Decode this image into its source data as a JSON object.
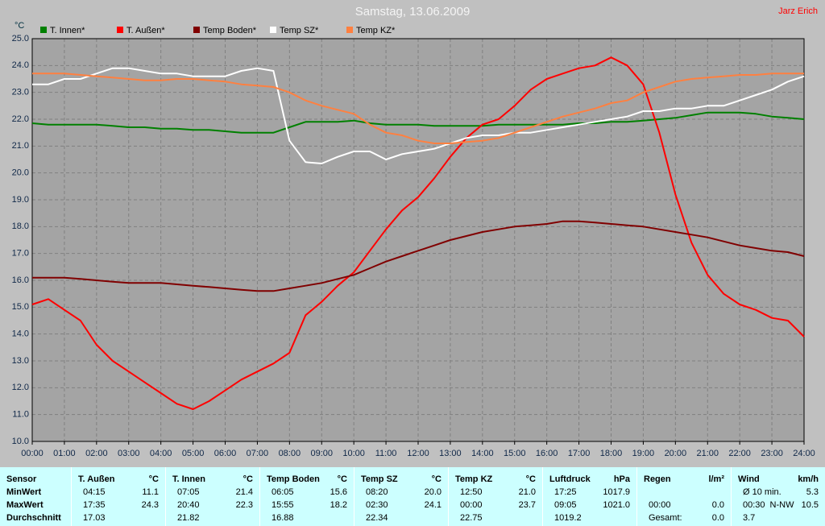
{
  "chart_data": {
    "type": "line",
    "title": "Samstag, 13.06.2009",
    "y_label": "°C",
    "xlim": [
      0,
      24
    ],
    "ylim": [
      10,
      25
    ],
    "xticks": [
      {
        "value": 0,
        "label": "00:00"
      },
      {
        "value": 1,
        "label": "01:00"
      },
      {
        "value": 2,
        "label": "02:00"
      },
      {
        "value": 3,
        "label": "03:00"
      },
      {
        "value": 4,
        "label": "04:00"
      },
      {
        "value": 5,
        "label": "05:00"
      },
      {
        "value": 6,
        "label": "06:00"
      },
      {
        "value": 7,
        "label": "07:00"
      },
      {
        "value": 8,
        "label": "08:00"
      },
      {
        "value": 9,
        "label": "09:00"
      },
      {
        "value": 10,
        "label": "10:00"
      },
      {
        "value": 11,
        "label": "11:00"
      },
      {
        "value": 12,
        "label": "12:00"
      },
      {
        "value": 13,
        "label": "13:00"
      },
      {
        "value": 14,
        "label": "14:00"
      },
      {
        "value": 15,
        "label": "15:00"
      },
      {
        "value": 16,
        "label": "16:00"
      },
      {
        "value": 17,
        "label": "17:00"
      },
      {
        "value": 18,
        "label": "18:00"
      },
      {
        "value": 19,
        "label": "19:00"
      },
      {
        "value": 20,
        "label": "20:00"
      },
      {
        "value": 21,
        "label": "21:00"
      },
      {
        "value": 22,
        "label": "22:00"
      },
      {
        "value": 23,
        "label": "23:00"
      },
      {
        "value": 24,
        "label": "24:00"
      }
    ],
    "yticks": [
      {
        "value": 10,
        "label": "10.0"
      },
      {
        "value": 11,
        "label": "11.0"
      },
      {
        "value": 12,
        "label": "12.0"
      },
      {
        "value": 13,
        "label": "13.0"
      },
      {
        "value": 14,
        "label": "14.0"
      },
      {
        "value": 15,
        "label": "15.0"
      },
      {
        "value": 16,
        "label": "16.0"
      },
      {
        "value": 17,
        "label": "17.0"
      },
      {
        "value": 18,
        "label": "18.0"
      },
      {
        "value": 19,
        "label": "19.0"
      },
      {
        "value": 20,
        "label": "20.0"
      },
      {
        "value": 21,
        "label": "21.0"
      },
      {
        "value": 22,
        "label": "22.0"
      },
      {
        "value": 23,
        "label": "23.0"
      },
      {
        "value": 24,
        "label": "24.0"
      },
      {
        "value": 25,
        "label": "25.0"
      }
    ],
    "grid": true,
    "x": [
      0,
      0.5,
      1,
      1.5,
      2,
      2.5,
      3,
      3.5,
      4,
      4.5,
      5,
      5.5,
      6,
      6.5,
      7,
      7.5,
      8,
      8.5,
      9,
      9.5,
      10,
      10.5,
      11,
      11.5,
      12,
      12.5,
      13,
      13.5,
      14,
      14.5,
      15,
      15.5,
      16,
      16.5,
      17,
      17.5,
      18,
      18.5,
      19,
      19.5,
      20,
      20.5,
      21,
      21.5,
      22,
      22.5,
      23,
      23.5,
      24
    ],
    "series": [
      {
        "name": "T. Innen*",
        "color": "#008000",
        "values": [
          21.85,
          21.8,
          21.8,
          21.8,
          21.8,
          21.75,
          21.7,
          21.7,
          21.65,
          21.65,
          21.6,
          21.6,
          21.55,
          21.5,
          21.5,
          21.5,
          21.7,
          21.9,
          21.9,
          21.9,
          21.95,
          21.85,
          21.8,
          21.8,
          21.8,
          21.75,
          21.75,
          21.75,
          21.75,
          21.8,
          21.8,
          21.8,
          21.8,
          21.8,
          21.85,
          21.85,
          21.9,
          21.9,
          21.95,
          22.0,
          22.05,
          22.15,
          22.25,
          22.25,
          22.25,
          22.2,
          22.1,
          22.05,
          22.0
        ]
      },
      {
        "name": "T. Außen*",
        "color": "#ff0000",
        "values": [
          15.1,
          15.3,
          14.9,
          14.5,
          13.6,
          13.0,
          12.6,
          12.2,
          11.8,
          11.4,
          11.2,
          11.5,
          11.9,
          12.3,
          12.6,
          12.9,
          13.3,
          14.7,
          15.2,
          15.8,
          16.3,
          17.1,
          17.9,
          18.6,
          19.1,
          19.8,
          20.6,
          21.3,
          21.8,
          22.0,
          22.5,
          23.1,
          23.5,
          23.7,
          23.9,
          24.0,
          24.3,
          24.0,
          23.3,
          21.5,
          19.2,
          17.4,
          16.2,
          15.5,
          15.1,
          14.9,
          14.6,
          14.5,
          13.9
        ]
      },
      {
        "name": "Temp Boden*",
        "color": "#800000",
        "values": [
          16.1,
          16.1,
          16.1,
          16.05,
          16.0,
          15.95,
          15.9,
          15.9,
          15.9,
          15.85,
          15.8,
          15.75,
          15.7,
          15.65,
          15.6,
          15.6,
          15.7,
          15.8,
          15.9,
          16.05,
          16.2,
          16.45,
          16.7,
          16.9,
          17.1,
          17.3,
          17.5,
          17.65,
          17.8,
          17.9,
          18.0,
          18.05,
          18.1,
          18.2,
          18.2,
          18.15,
          18.1,
          18.05,
          18.0,
          17.9,
          17.8,
          17.7,
          17.6,
          17.45,
          17.3,
          17.2,
          17.1,
          17.05,
          16.9
        ]
      },
      {
        "name": "Temp SZ*",
        "color": "#ffffff",
        "values": [
          23.3,
          23.3,
          23.5,
          23.5,
          23.7,
          23.9,
          23.9,
          23.8,
          23.7,
          23.7,
          23.6,
          23.6,
          23.6,
          23.8,
          23.9,
          23.8,
          21.2,
          20.4,
          20.35,
          20.6,
          20.8,
          20.8,
          20.5,
          20.7,
          20.8,
          20.9,
          21.1,
          21.3,
          21.4,
          21.4,
          21.5,
          21.5,
          21.6,
          21.7,
          21.8,
          21.9,
          22.0,
          22.1,
          22.3,
          22.3,
          22.4,
          22.4,
          22.5,
          22.5,
          22.7,
          22.9,
          23.1,
          23.4,
          23.6
        ]
      },
      {
        "name": "Temp KZ*",
        "color": "#ff8040",
        "values": [
          23.7,
          23.7,
          23.7,
          23.65,
          23.6,
          23.55,
          23.5,
          23.45,
          23.45,
          23.5,
          23.5,
          23.45,
          23.4,
          23.3,
          23.25,
          23.2,
          23.0,
          22.7,
          22.5,
          22.35,
          22.2,
          21.8,
          21.5,
          21.4,
          21.2,
          21.1,
          21.1,
          21.15,
          21.2,
          21.3,
          21.5,
          21.7,
          21.9,
          22.1,
          22.25,
          22.4,
          22.6,
          22.7,
          23.0,
          23.2,
          23.4,
          23.5,
          23.55,
          23.6,
          23.65,
          23.65,
          23.7,
          23.7,
          23.7
        ]
      }
    ]
  },
  "header": {
    "author": "Jarz Erich"
  },
  "table": {
    "header": "Sensor",
    "row_labels": [
      "MinWert",
      "MaxWert",
      "Durchschnitt"
    ],
    "columns": [
      {
        "name": "T. Außen",
        "unit": "°C",
        "rows": [
          [
            "04:15",
            "11.1"
          ],
          [
            "17:35",
            "24.3"
          ],
          [
            "17.03"
          ]
        ]
      },
      {
        "name": "T. Innen",
        "unit": "°C",
        "rows": [
          [
            "07:05",
            "21.4"
          ],
          [
            "20:40",
            "22.3"
          ],
          [
            "21.82"
          ]
        ]
      },
      {
        "name": "Temp Boden",
        "unit": "°C",
        "rows": [
          [
            "06:05",
            "15.6"
          ],
          [
            "15:55",
            "18.2"
          ],
          [
            "16.88"
          ]
        ]
      },
      {
        "name": "Temp SZ",
        "unit": "°C",
        "rows": [
          [
            "08:20",
            "20.0"
          ],
          [
            "02:30",
            "24.1"
          ],
          [
            "22.34"
          ]
        ]
      },
      {
        "name": "Temp KZ",
        "unit": "°C",
        "rows": [
          [
            "12:50",
            "21.0"
          ],
          [
            "00:00",
            "23.7"
          ],
          [
            "22.75"
          ]
        ]
      },
      {
        "name": "Luftdruck",
        "unit": "hPa",
        "rows": [
          [
            "17:25",
            "1017.9"
          ],
          [
            "09:05",
            "1021.0"
          ],
          [
            "1019.2"
          ]
        ]
      },
      {
        "name": "Regen",
        "unit": "l/m²",
        "rows": [
          [],
          [
            "00:00",
            "0.0"
          ],
          [
            "Gesamt:",
            "0.0"
          ]
        ]
      },
      {
        "name": "Wind",
        "unit": "km/h",
        "rows": [
          [
            "Ø 10 min.",
            "5.3"
          ],
          [
            "00:30",
            "N-NW",
            "10.5"
          ],
          [
            "3.7"
          ]
        ]
      }
    ]
  }
}
